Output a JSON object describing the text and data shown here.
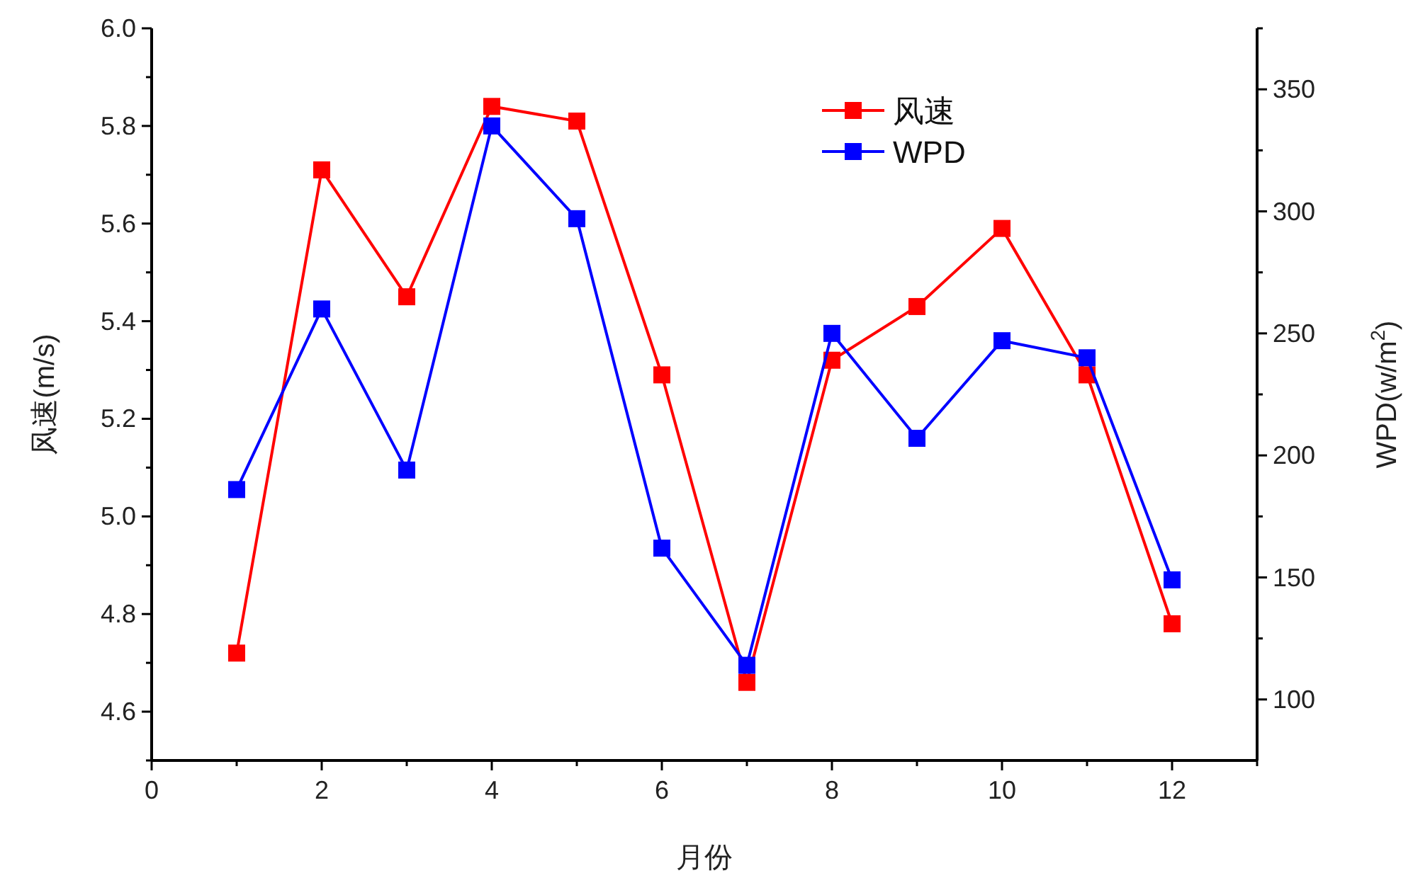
{
  "chart_data": {
    "type": "line",
    "xlabel": "月份",
    "ylabel": "风速(m/s)",
    "y2label": "WPD(w/m$^{2}$)",
    "x": [
      1,
      2,
      3,
      4,
      5,
      6,
      7,
      8,
      9,
      10,
      11,
      12
    ],
    "xlim": [
      0,
      13
    ],
    "xticks": [
      0,
      {
        "value": 1,
        "label": null
      },
      2,
      {
        "value": 3,
        "label": null
      },
      4,
      {
        "value": 5,
        "label": null
      },
      6,
      {
        "value": 7,
        "label": null
      },
      8,
      {
        "value": 9,
        "label": null
      },
      10,
      {
        "value": 11,
        "label": null
      },
      12,
      {
        "value": 13,
        "label": null
      }
    ],
    "ylim": [
      4.5,
      6.0
    ],
    "yticks": [
      {
        "value": 4.5,
        "label": null
      },
      4.6,
      {
        "value": 4.7,
        "label": null
      },
      4.8,
      {
        "value": 4.9,
        "label": null
      },
      {
        "value": 5.0,
        "label": "5.0"
      },
      {
        "value": 5.1,
        "label": null
      },
      5.2,
      {
        "value": 5.3,
        "label": null
      },
      5.4,
      {
        "value": 5.5,
        "label": null
      },
      5.6,
      {
        "value": 5.7,
        "label": null
      },
      5.8,
      {
        "value": 5.9,
        "label": null
      },
      {
        "value": 6.0,
        "label": "6.0"
      }
    ],
    "y2lim": [
      75,
      375
    ],
    "y2ticks": [
      100,
      {
        "value": 125,
        "label": null
      },
      150,
      {
        "value": 175,
        "label": null
      },
      200,
      {
        "value": 225,
        "label": null
      },
      250,
      {
        "value": 275,
        "label": null
      },
      300,
      {
        "value": 325,
        "label": null
      },
      350,
      {
        "value": 375,
        "label": null
      }
    ],
    "marker": "square",
    "line_style": "solid",
    "grid": false,
    "legend": "top",
    "series": [
      {
        "name": "风速",
        "color": "#ff0000",
        "values": [
          4.72,
          5.71,
          5.45,
          5.84,
          5.81,
          5.29,
          4.66,
          5.32,
          5.43,
          5.59,
          5.29,
          4.78
        ]
      },
      {
        "name": "WPD",
        "color": "#0000ff",
        "axis": "y2",
        "values": [
          186,
          260,
          194,
          335,
          297,
          162,
          114,
          250,
          207,
          247,
          240,
          149
        ]
      }
    ]
  }
}
